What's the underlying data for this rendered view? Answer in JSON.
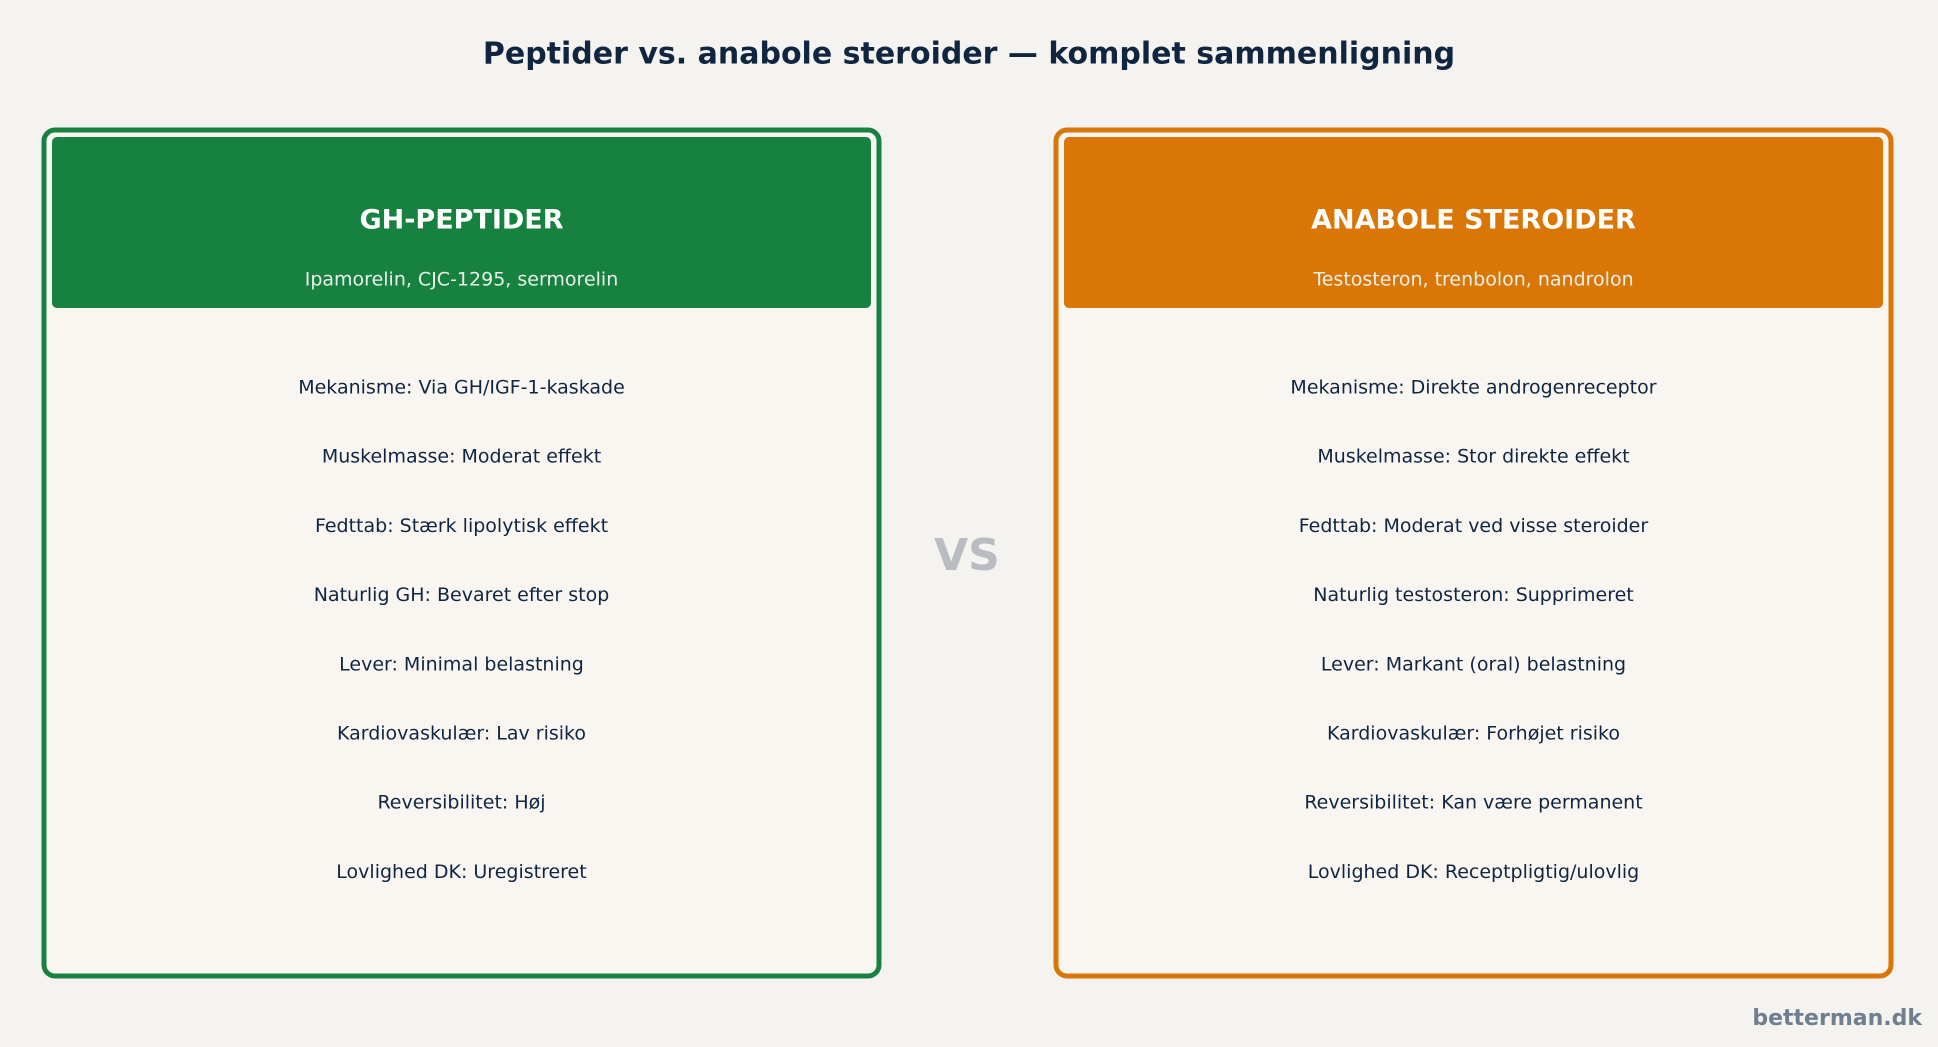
{
  "header": {
    "title": "Peptider vs. anabole steroider — komplet sammenligning"
  },
  "vs": "VS",
  "cards": [
    {
      "title": "GH-PEPTIDER",
      "subtitle": "Ipamorelin, CJC-1295, sermorelin",
      "color": "#178140",
      "rows": [
        "Mekanisme: Via GH/IGF-1-kaskade",
        "Muskelmasse: Moderat effekt",
        "Fedttab: Stærk lipolytisk effekt",
        "Naturlig GH: Bevaret efter stop",
        "Lever: Minimal belastning",
        "Kardiovaskulær: Lav risiko",
        "Reversibilitet: Høj",
        "Lovlighed DK: Uregistreret"
      ]
    },
    {
      "title": "ANABOLE STEROIDER",
      "subtitle": "Testosteron, trenbolon, nandrolon",
      "color": "#d97606",
      "rows": [
        "Mekanisme: Direkte androgenreceptor",
        "Muskelmasse: Stor direkte effekt",
        "Fedttab: Moderat ved visse steroider",
        "Naturlig testosteron: Supprimeret",
        "Lever: Markant (oral) belastning",
        "Kardiovaskulær: Forhøjet risiko",
        "Reversibilitet: Kan være permanent",
        "Lovlighed DK: Receptpligtig/ulovlig"
      ]
    }
  ],
  "footer": "betterman.dk"
}
